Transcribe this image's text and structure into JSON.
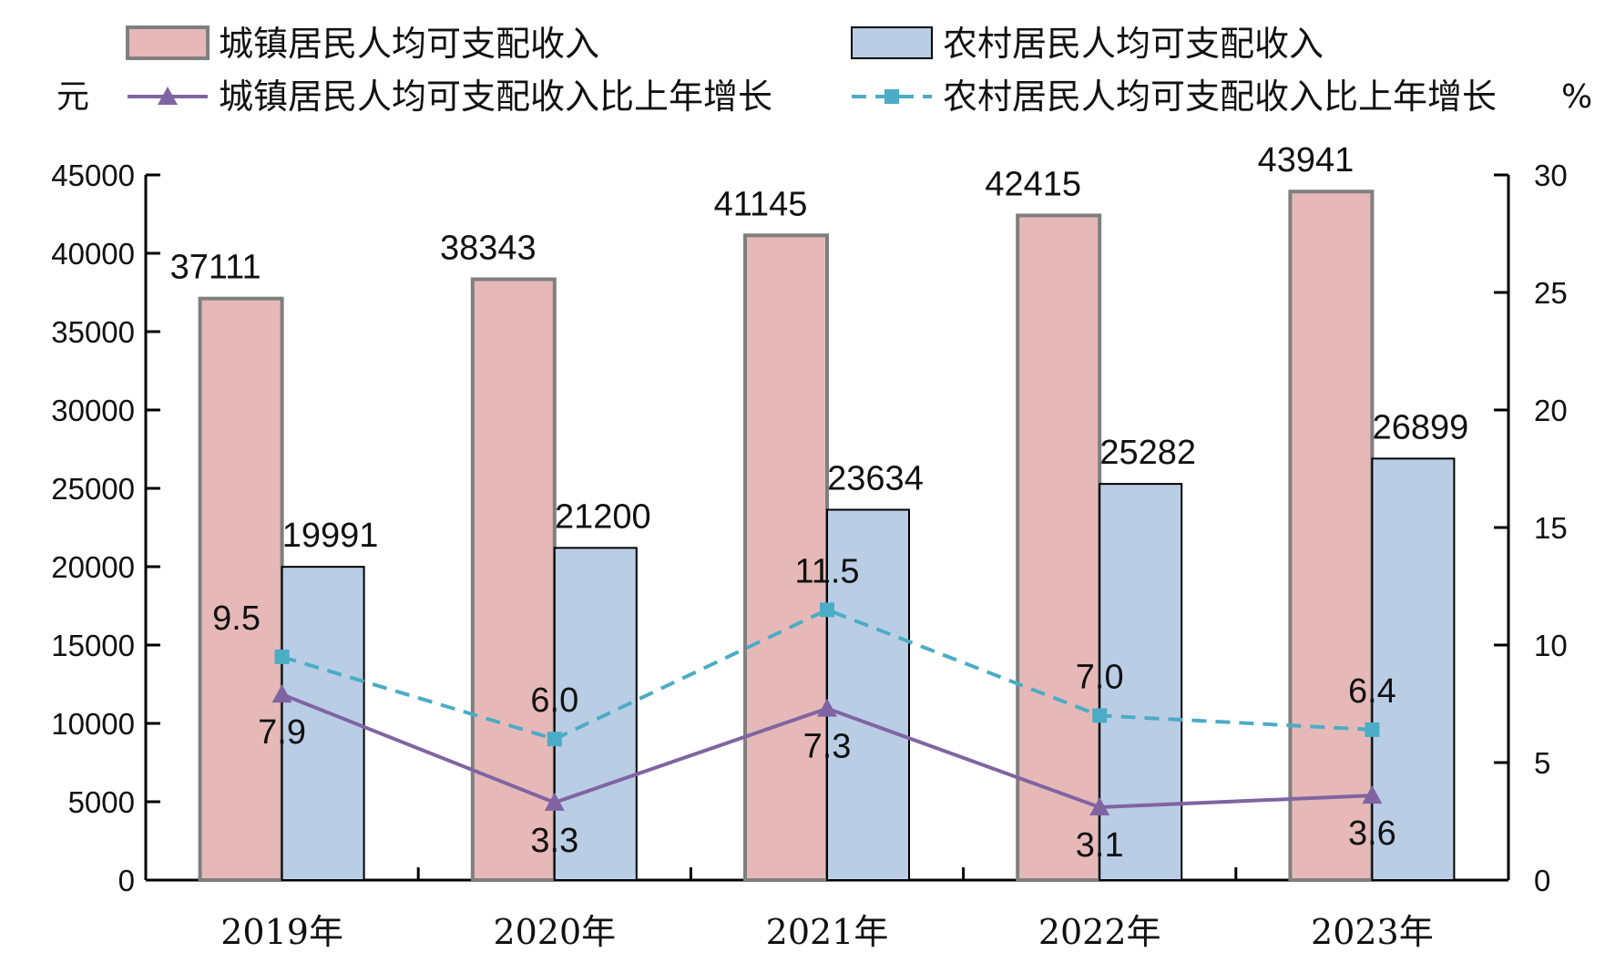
{
  "chart_data": {
    "type": "bar",
    "categories": [
      "2019年",
      "2020年",
      "2021年",
      "2022年",
      "2023年"
    ],
    "series": [
      {
        "name": "城镇居民人均可支配收入",
        "kind": "bar",
        "axis": "left",
        "color": "#e6b9b8",
        "values": [
          37111,
          38343,
          41145,
          42415,
          43941
        ]
      },
      {
        "name": "农村居民人均可支配收入",
        "kind": "bar",
        "axis": "left",
        "color": "#b9cde5",
        "values": [
          19991,
          21200,
          23634,
          25282,
          26899
        ]
      },
      {
        "name": "城镇居民人均可支配收入比上年增长",
        "kind": "line",
        "axis": "right",
        "color": "#8064a2",
        "marker": "triangle",
        "dash": "solid",
        "values": [
          7.9,
          3.3,
          7.3,
          3.1,
          3.6
        ]
      },
      {
        "name": "农村居民人均可支配收入比上年增长",
        "kind": "line",
        "axis": "right",
        "color": "#4bacc6",
        "marker": "square",
        "dash": "dashed",
        "values": [
          9.5,
          6.0,
          11.5,
          7.0,
          6.4
        ]
      }
    ],
    "y_left": {
      "unit": "元",
      "ylim": [
        0,
        45000
      ],
      "ticks": [
        "0",
        "5000",
        "10000",
        "15000",
        "20000",
        "25000",
        "30000",
        "35000",
        "40000",
        "45000"
      ]
    },
    "y_right": {
      "unit": "%",
      "ylim": [
        0,
        30
      ],
      "ticks": [
        "0",
        "5",
        "10",
        "15",
        "20",
        "25",
        "30"
      ]
    },
    "bar_labels": [
      [
        "37111",
        "38343",
        "41145",
        "42415",
        "43941"
      ],
      [
        "19991",
        "21200",
        "23634",
        "25282",
        "26899"
      ]
    ],
    "line_labels": [
      [
        "7.9",
        "3.3",
        "7.3",
        "3.1",
        "3.6"
      ],
      [
        "9.5",
        "6.0",
        "11.5",
        "7.0",
        "6.4"
      ]
    ],
    "grid": false,
    "legend": "top"
  }
}
